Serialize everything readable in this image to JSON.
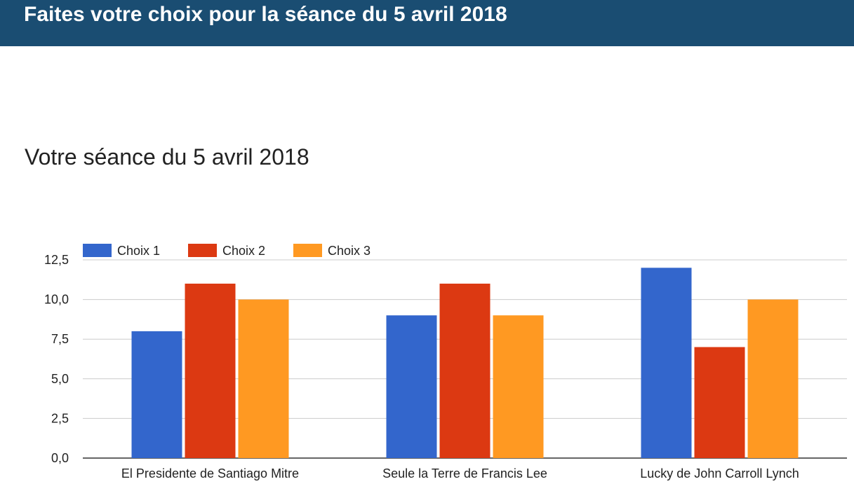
{
  "header": {
    "title": "Faites votre choix pour la séance du 5 avril 2018"
  },
  "page": {
    "title": "Votre séance du 5 avril 2018"
  },
  "colors": {
    "header_bg": "#1a4d72",
    "series": [
      "#3366cc",
      "#dc3912",
      "#ff9922"
    ]
  },
  "chart_data": {
    "type": "bar",
    "title": "",
    "xlabel": "",
    "ylabel": "",
    "categories": [
      "El Presidente de Santiago Mitre",
      "Seule la Terre de Francis Lee",
      "Lucky de John Carroll Lynch"
    ],
    "series": [
      {
        "name": "Choix 1",
        "values": [
          8,
          9,
          12
        ]
      },
      {
        "name": "Choix 2",
        "values": [
          11,
          11,
          7
        ]
      },
      {
        "name": "Choix 3",
        "values": [
          10,
          9,
          10
        ]
      }
    ],
    "ylim": [
      0,
      12.5
    ],
    "yticks": [
      "0,0",
      "2,5",
      "5,0",
      "7,5",
      "10,0",
      "12,5"
    ],
    "ytick_values": [
      0,
      2.5,
      5,
      7.5,
      10,
      12.5
    ],
    "grid": true,
    "legend_position": "top-left"
  }
}
